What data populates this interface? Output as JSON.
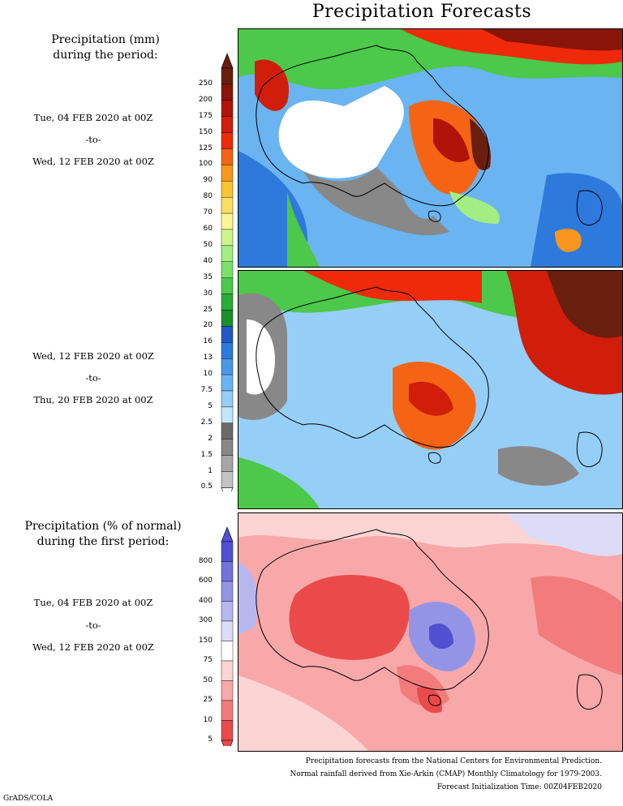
{
  "title": "Precipitation Forecasts",
  "legend1": {
    "heading_line1": "Precipitation (mm)",
    "heading_line2": "during the period:",
    "levels": [
      "250",
      "200",
      "175",
      "150",
      "125",
      "100",
      "90",
      "80",
      "70",
      "60",
      "50",
      "40",
      "35",
      "30",
      "25",
      "20",
      "16",
      "13",
      "10",
      "7.5",
      "5",
      "2.5",
      "2",
      "1.5",
      "1",
      "0.5"
    ],
    "colors": [
      "#6a1e0e",
      "#8a1408",
      "#b01408",
      "#d01e0a",
      "#ee2a0a",
      "#f46414",
      "#f8961e",
      "#fac432",
      "#fade64",
      "#fcf596",
      "#cff58e",
      "#a2ee82",
      "#7ae16c",
      "#4cc84a",
      "#2aab36",
      "#1a8f2a",
      "#2459c4",
      "#2e79dc",
      "#4a97ea",
      "#6bb4f2",
      "#95cff8",
      "#c1e6fb",
      "#6a6a6a",
      "#888888",
      "#a6a6a6",
      "#c4c4c4"
    ]
  },
  "period1": {
    "start": "Tue, 04 FEB 2020 at 00Z",
    "sep": "-to-",
    "end": "Wed, 12 FEB 2020 at 00Z"
  },
  "period2": {
    "start": "Wed, 12 FEB 2020 at 00Z",
    "sep": "-to-",
    "end": "Thu, 20 FEB 2020 at 00Z"
  },
  "legend2": {
    "heading_line1": "Precipitation (% of normal)",
    "heading_line2": "during the first period:",
    "levels": [
      "800",
      "600",
      "400",
      "300",
      "150",
      "75",
      "50",
      "25",
      "10",
      "5"
    ],
    "colors": [
      "#5050d0",
      "#7272dc",
      "#9494e6",
      "#b8b8f0",
      "#dcdcf8",
      "#ffffff",
      "#fcd4d4",
      "#f8a8a8",
      "#f27c7c",
      "#ea4a4a"
    ]
  },
  "period3": {
    "start": "Tue, 04 FEB 2020 at 00Z",
    "sep": "-to-",
    "end": "Wed, 12 FEB 2020 at 00Z"
  },
  "footer": {
    "line1": "Precipitation forecasts from the National Centers for Environmental Prediction.",
    "line2": "Normal rainfall derived from Xie-Arkin (CMAP) Monthly Climatology for 1979-2003.",
    "line3": "Forecast Initialization Time: 00Z04FEB2020"
  },
  "credit": "GrADS/COLA"
}
